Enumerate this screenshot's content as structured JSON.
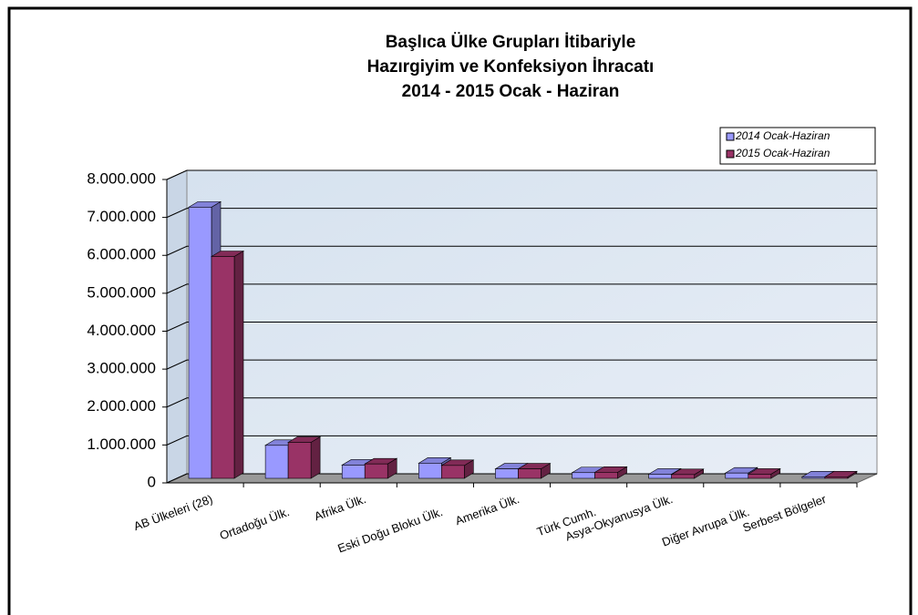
{
  "chart_data": {
    "type": "bar",
    "title": [
      "Başlıca Ülke Grupları İtibariyle",
      "Hazırgiyim ve Konfeksiyon İhracatı",
      "2014 - 2015  Ocak - Haziran"
    ],
    "categories": [
      "AB Ülkeleri (28)",
      "Ortadoğu Ülk.",
      "Afrika Ülk.",
      "Eski Doğu Bloku Ülk.",
      "Amerika Ülk.",
      "Türk Cumh.",
      "Asya-Okyanusya Ülk.",
      "Diğer Avrupa Ülk.",
      "Serbest Bölgeler"
    ],
    "series": [
      {
        "name": "2014 Ocak-Haziran",
        "color": "#9999ff",
        "values": [
          7150000,
          870000,
          350000,
          400000,
          250000,
          150000,
          110000,
          140000,
          40000
        ]
      },
      {
        "name": "2015 Ocak-Haziran",
        "color": "#993366",
        "values": [
          5850000,
          950000,
          380000,
          340000,
          250000,
          160000,
          100000,
          110000,
          40000
        ]
      }
    ],
    "ylim": [
      0,
      8000000
    ],
    "yticks": [
      0,
      {
        "value": 1000000,
        "label": "1.000.000"
      },
      {
        "value": 2000000,
        "label": "2.000.000"
      },
      {
        "value": 3000000,
        "label": "3.000.000"
      },
      {
        "value": 4000000,
        "label": "4.000.000"
      },
      {
        "value": 5000000,
        "label": "5.000.000"
      },
      {
        "value": 6000000,
        "label": "6.000.000"
      },
      {
        "value": 7000000,
        "label": "7.000.000"
      },
      {
        "value": 8000000,
        "label": "8.000.000"
      }
    ],
    "grid": true,
    "legend": "top-right"
  }
}
